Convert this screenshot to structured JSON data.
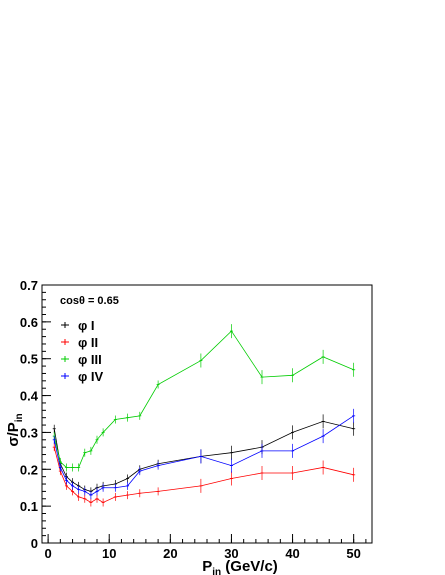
{
  "chart_data": {
    "type": "line",
    "annotation": "cosθ = 0.65",
    "xlabel": {
      "main": "P",
      "sub": "in",
      "unit": " (GeV/c)"
    },
    "ylabel": {
      "main": "σ/P",
      "sub": "in"
    },
    "xlim": [
      -1,
      53
    ],
    "ylim": [
      0,
      0.7
    ],
    "xticks": [
      0,
      10,
      20,
      30,
      40,
      50
    ],
    "yticks": [
      0,
      0.1,
      0.2,
      0.3,
      0.4,
      0.5,
      0.6,
      0.7
    ],
    "ytick_labels": [
      "0",
      "0.1",
      "0.2",
      "0.3",
      "0.4",
      "0.5",
      "0.6",
      "0.7"
    ],
    "grid": false,
    "legend_position": "top-left",
    "series": [
      {
        "name": "φ I",
        "color": "#000000",
        "x": [
          1,
          2,
          3,
          4,
          5,
          6,
          7,
          8,
          9,
          11,
          13,
          15,
          18,
          25,
          30,
          35,
          40,
          45,
          50
        ],
        "y": [
          0.31,
          0.215,
          0.18,
          0.165,
          0.155,
          0.145,
          0.14,
          0.15,
          0.155,
          0.16,
          0.175,
          0.2,
          0.215,
          0.235,
          0.245,
          0.26,
          0.3,
          0.33,
          0.31
        ]
      },
      {
        "name": "φ II",
        "color": "#ff0000",
        "x": [
          1,
          2,
          3,
          4,
          5,
          6,
          7,
          8,
          9,
          11,
          13,
          15,
          18,
          25,
          30,
          35,
          40,
          45,
          50
        ],
        "y": [
          0.26,
          0.195,
          0.155,
          0.14,
          0.125,
          0.12,
          0.11,
          0.12,
          0.11,
          0.125,
          0.13,
          0.135,
          0.14,
          0.155,
          0.175,
          0.19,
          0.19,
          0.205,
          0.185
        ]
      },
      {
        "name": "φ III",
        "color": "#00cc00",
        "x": [
          1,
          2,
          3,
          4,
          5,
          6,
          7,
          8,
          9,
          11,
          13,
          15,
          18,
          25,
          30,
          35,
          40,
          45,
          50
        ],
        "y": [
          0.29,
          0.22,
          0.205,
          0.205,
          0.205,
          0.245,
          0.25,
          0.28,
          0.3,
          0.335,
          0.34,
          0.345,
          0.43,
          0.495,
          0.575,
          0.45,
          0.455,
          0.505,
          0.47
        ]
      },
      {
        "name": "φ IV",
        "color": "#0000ff",
        "x": [
          1,
          2,
          3,
          4,
          5,
          6,
          7,
          8,
          9,
          11,
          13,
          15,
          18,
          25,
          30,
          35,
          40,
          45,
          50
        ],
        "y": [
          0.28,
          0.205,
          0.17,
          0.155,
          0.145,
          0.14,
          0.13,
          0.14,
          0.15,
          0.15,
          0.155,
          0.195,
          0.21,
          0.235,
          0.21,
          0.25,
          0.25,
          0.29,
          0.345
        ]
      }
    ]
  }
}
